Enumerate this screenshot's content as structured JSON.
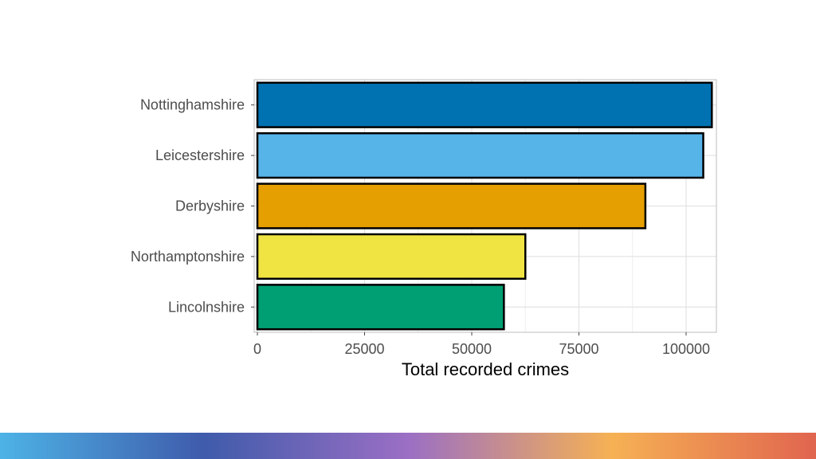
{
  "chart_data": {
    "type": "bar",
    "orientation": "horizontal",
    "categories": [
      "Nottinghamshire",
      "Leicestershire",
      "Derbyshire",
      "Northamptonshire",
      "Lincolnshire"
    ],
    "values": [
      106000,
      104000,
      90500,
      62500,
      57500
    ],
    "colors": [
      "#0072B2",
      "#56B4E9",
      "#E69F00",
      "#F0E442",
      "#009E73"
    ],
    "xlabel": "Total recorded crimes",
    "ylabel": "",
    "xlim": [
      0,
      106300
    ],
    "xticks": [
      0,
      25000,
      50000,
      75000,
      100000
    ],
    "xtick_labels": [
      "0",
      "25000",
      "50000",
      "75000",
      "100000"
    ],
    "grid": true,
    "legend": "none"
  },
  "footer": {
    "gradient_colors": [
      "#4db3e6",
      "#3f5bab",
      "#9b6fc4",
      "#f6b154",
      "#e0654f"
    ]
  }
}
